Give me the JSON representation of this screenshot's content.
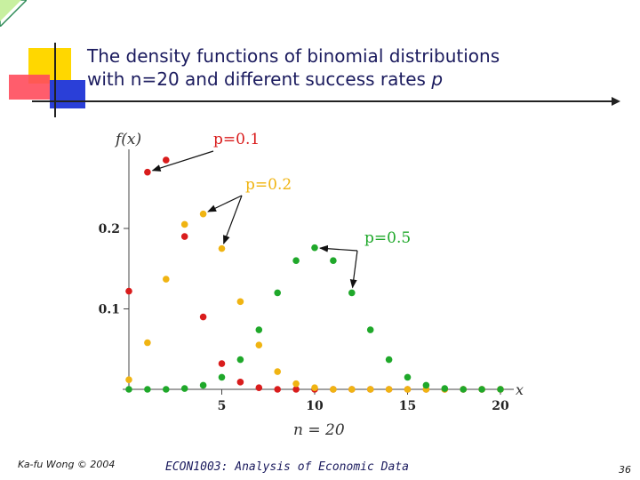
{
  "slide": {
    "title_line1": "The density functions of binomial distributions",
    "title_line2_prefix": "with n=20 and different success rates ",
    "title_line2_var": "p",
    "footer_author": "Ka-fu Wong © 2004",
    "footer_course": "ECON1003: Analysis of Economic Data",
    "page_number": "36",
    "colors": {
      "title": "#1b1b5e",
      "deco_yellow": "#ffd700",
      "deco_red": "#ff4b5c",
      "deco_blue": "#2a3fd8",
      "corner_green": "#2e8b57"
    }
  },
  "chart_data": {
    "type": "scatter",
    "ylabel": "f(x)",
    "xlabel": "x",
    "subtitle": "n = 20",
    "xlim": [
      0,
      21
    ],
    "ylim": [
      0,
      0.3
    ],
    "x_ticks": [
      5,
      10,
      15,
      20
    ],
    "x_tick_labels": [
      "5",
      "10",
      "15",
      "20"
    ],
    "y_ticks": [
      0.1,
      0.2
    ],
    "y_tick_labels": [
      "0.1",
      "0.2"
    ],
    "x": [
      0,
      1,
      2,
      3,
      4,
      5,
      6,
      7,
      8,
      9,
      10,
      11,
      12,
      13,
      14,
      15,
      16,
      17,
      18,
      19,
      20
    ],
    "series": [
      {
        "name": "p=0.1",
        "color": "#d91c1c",
        "values": [
          0.122,
          0.27,
          0.285,
          0.19,
          0.09,
          0.032,
          0.009,
          0.002,
          0.0,
          0.0,
          0.0,
          0.0,
          0.0,
          0.0,
          0.0,
          0.0,
          0.0,
          0.0,
          0.0,
          0.0,
          0.0
        ],
        "label_anchor": 1
      },
      {
        "name": "p=0.2",
        "color": "#f0b412",
        "values": [
          0.012,
          0.058,
          0.137,
          0.205,
          0.218,
          0.175,
          0.109,
          0.055,
          0.022,
          0.007,
          0.002,
          0.0,
          0.0,
          0.0,
          0.0,
          0.0,
          0.0,
          0.0,
          0.0,
          0.0,
          0.0
        ],
        "label_anchors": [
          4,
          5
        ]
      },
      {
        "name": "p=0.5",
        "color": "#1fa82a",
        "values": [
          0.0,
          0.0,
          0.0,
          0.001,
          0.005,
          0.015,
          0.037,
          0.074,
          0.12,
          0.16,
          0.176,
          0.16,
          0.12,
          0.074,
          0.037,
          0.015,
          0.005,
          0.001,
          0.0,
          0.0,
          0.0
        ],
        "label_anchors": [
          10,
          12
        ]
      }
    ]
  }
}
